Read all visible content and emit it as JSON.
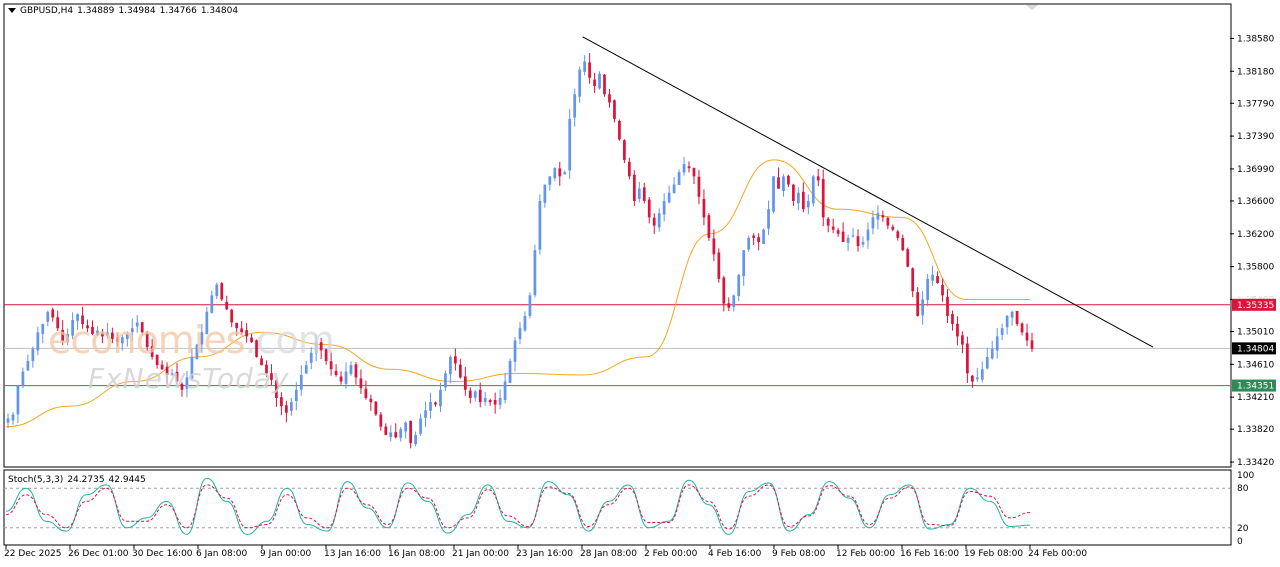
{
  "header": {
    "symbol": "GBPUSD,H4",
    "open": "1.34889",
    "high": "1.34984",
    "low": "1.34766",
    "close": "1.34804"
  },
  "watermark": {
    "brand_part1": "economies",
    "brand_part2": ".com",
    "subtitle": "FxNewsToday"
  },
  "stoch_header": {
    "name": "Stoch(5,3,3)",
    "main": "24.2735",
    "signal": "42.9445"
  },
  "chart_data": [
    {
      "type": "candlestick",
      "symbol": "GBPUSD",
      "timeframe": "H4",
      "ylim": [
        1.3342,
        1.3878
      ],
      "y_ticks": [
        "1.38580",
        "1.38180",
        "1.37790",
        "1.37390",
        "1.36990",
        "1.36600",
        "1.36200",
        "1.35800",
        "1.35400",
        "1.35010",
        "1.34610",
        "1.34210",
        "1.33820",
        "1.33420"
      ],
      "x_ticks": [
        "22 Dec 2025",
        "26 Dec 01:00",
        "30 Dec 16:00",
        "6 Jan 08:00",
        "9 Jan 00:00",
        "13 Jan 16:00",
        "16 Jan 08:00",
        "21 Jan 00:00",
        "23 Jan 16:00",
        "28 Jan 08:00",
        "2 Feb 00:00",
        "4 Feb 16:00",
        "9 Feb 08:00",
        "12 Feb 00:00",
        "16 Feb 16:00",
        "19 Feb 08:00",
        "24 Feb 00:00"
      ],
      "close_path": [
        [
          1.3395,
          1.34,
          1.3435,
          1.3452,
          1.3465,
          1.348,
          1.35,
          1.351,
          1.3525,
          1.3518,
          1.3505,
          1.349,
          1.3498
        ],
        [
          1.3515,
          1.3522,
          1.351,
          1.3505,
          1.3498,
          1.3502,
          1.3495,
          1.35,
          1.3492,
          1.3488,
          1.3494,
          1.3498,
          1.3505,
          1.3512,
          1.35
        ],
        [
          1.3482,
          1.347,
          1.346,
          1.3455,
          1.3448,
          1.345,
          1.344,
          1.343,
          1.3445,
          1.347,
          1.3485,
          1.35,
          1.3525,
          1.3545,
          1.3558,
          1.354
        ],
        [
          1.3528,
          1.3512,
          1.3505,
          1.35,
          1.3495,
          1.3488,
          1.347,
          1.346,
          1.345,
          1.3442,
          1.342,
          1.341,
          1.3402,
          1.3415,
          1.343
        ],
        [
          1.3448,
          1.346,
          1.3475,
          1.3488,
          1.3478,
          1.3465,
          1.3455,
          1.3448,
          1.344,
          1.3452,
          1.346,
          1.3445,
          1.3432,
          1.342,
          1.3415
        ],
        [
          1.34,
          1.3385,
          1.3375,
          1.3378,
          1.3372,
          1.3382,
          1.339,
          1.3365,
          1.3375,
          1.3395,
          1.3405,
          1.3415,
          1.3412
        ],
        [
          1.343,
          1.345,
          1.347,
          1.3462,
          1.3445,
          1.343,
          1.342,
          1.3428,
          1.3415,
          1.342,
          1.3415,
          1.3412
        ],
        [
          1.342,
          1.344,
          1.3465,
          1.349,
          1.3505,
          1.352,
          1.3545
        ],
        [
          1.36,
          1.366,
          1.368,
          1.369,
          1.37,
          1.369,
          1.3695
        ],
        [
          1.376,
          1.379,
          1.382,
          1.383,
          1.381,
          1.38,
          1.3815,
          1.379,
          1.378,
          1.376
        ],
        [
          1.3735,
          1.371,
          1.369,
          1.366,
          1.3675,
          1.366,
          1.364,
          1.363,
          1.3645,
          1.366,
          1.367,
          1.368,
          1.3695,
          1.3705,
          1.37
        ],
        [
          1.369,
          1.3665,
          1.364,
          1.3615,
          1.3595,
          1.3565,
          1.3535,
          1.353,
          1.3545,
          1.357,
          1.36,
          1.3615,
          1.3615,
          1.361
        ],
        [
          1.3625,
          1.365,
          1.369,
          1.3675,
          1.369,
          1.368,
          1.366,
          1.367,
          1.365,
          1.366,
          1.369,
          1.3685,
          1.364,
          1.363
        ],
        [
          1.3625,
          1.362,
          1.361,
          1.3615,
          1.3618,
          1.3605,
          1.361,
          1.3625,
          1.364,
          1.3645,
          1.364,
          1.363,
          1.3625,
          1.3615,
          1.36
        ],
        [
          1.358,
          1.355,
          1.352,
          1.354,
          1.3565,
          1.357,
          1.356,
          1.3545,
          1.352
        ],
        [
          1.351,
          1.3495,
          1.3485,
          1.345,
          1.344,
          1.3445,
          1.3455,
          1.347
        ],
        [
          1.348,
          1.3495,
          1.3505,
          1.352,
          1.3525,
          1.351,
          1.35,
          1.349,
          1.348
        ]
      ],
      "trendline": {
        "start_price": 1.386,
        "end_price": 1.3482,
        "start_bar": 1,
        "end_bar": 0
      },
      "moving_average": [
        1.3385,
        1.341,
        1.344,
        1.347,
        1.35,
        1.3485,
        1.3455,
        1.344,
        1.345,
        1.3448,
        1.347,
        1.362,
        1.371,
        1.365,
        1.364,
        1.354,
        1.354
      ],
      "levels": [
        {
          "label": "1.35335",
          "price": 1.35335,
          "color": "#dc143c"
        },
        {
          "label": "1.34804",
          "price": 1.34804,
          "color": "#c0c0c0"
        },
        {
          "label": "1.34351",
          "price": 1.34351,
          "color": "#2e8b57"
        }
      ],
      "axis_tag_partial": "1.35400",
      "colors": {
        "bull": "#6495ed",
        "bear": "#dc143c",
        "ma": "#f5a623",
        "trend": "#000000"
      }
    },
    {
      "type": "line",
      "name": "Stoch(5,3,3)",
      "ylim": [
        0,
        100
      ],
      "y_ticks": [
        "100",
        "80",
        "20",
        "0"
      ],
      "levels": [
        80,
        20
      ],
      "series": [
        {
          "name": "main",
          "color": "#20b2aa",
          "values": [
            45,
            80,
            30,
            15,
            70,
            85,
            20,
            35,
            60,
            10,
            95,
            60,
            10,
            30,
            80,
            25,
            15,
            90,
            50,
            20,
            88,
            60,
            12,
            40,
            85,
            30,
            20,
            90,
            70,
            15,
            60,
            85,
            20,
            30,
            92,
            55,
            10,
            75,
            88,
            15,
            40,
            90,
            65,
            20,
            70,
            85,
            18,
            25,
            80,
            60,
            22,
            24
          ]
        },
        {
          "name": "signal",
          "color": "#dc143c",
          "values": [
            40,
            70,
            40,
            20,
            60,
            80,
            30,
            30,
            55,
            20,
            85,
            65,
            20,
            25,
            70,
            35,
            20,
            80,
            55,
            25,
            80,
            65,
            20,
            35,
            78,
            38,
            22,
            82,
            72,
            22,
            55,
            80,
            28,
            28,
            85,
            60,
            18,
            68,
            85,
            22,
            38,
            84,
            68,
            25,
            65,
            82,
            25,
            23,
            75,
            68,
            35,
            43
          ]
        }
      ]
    }
  ]
}
